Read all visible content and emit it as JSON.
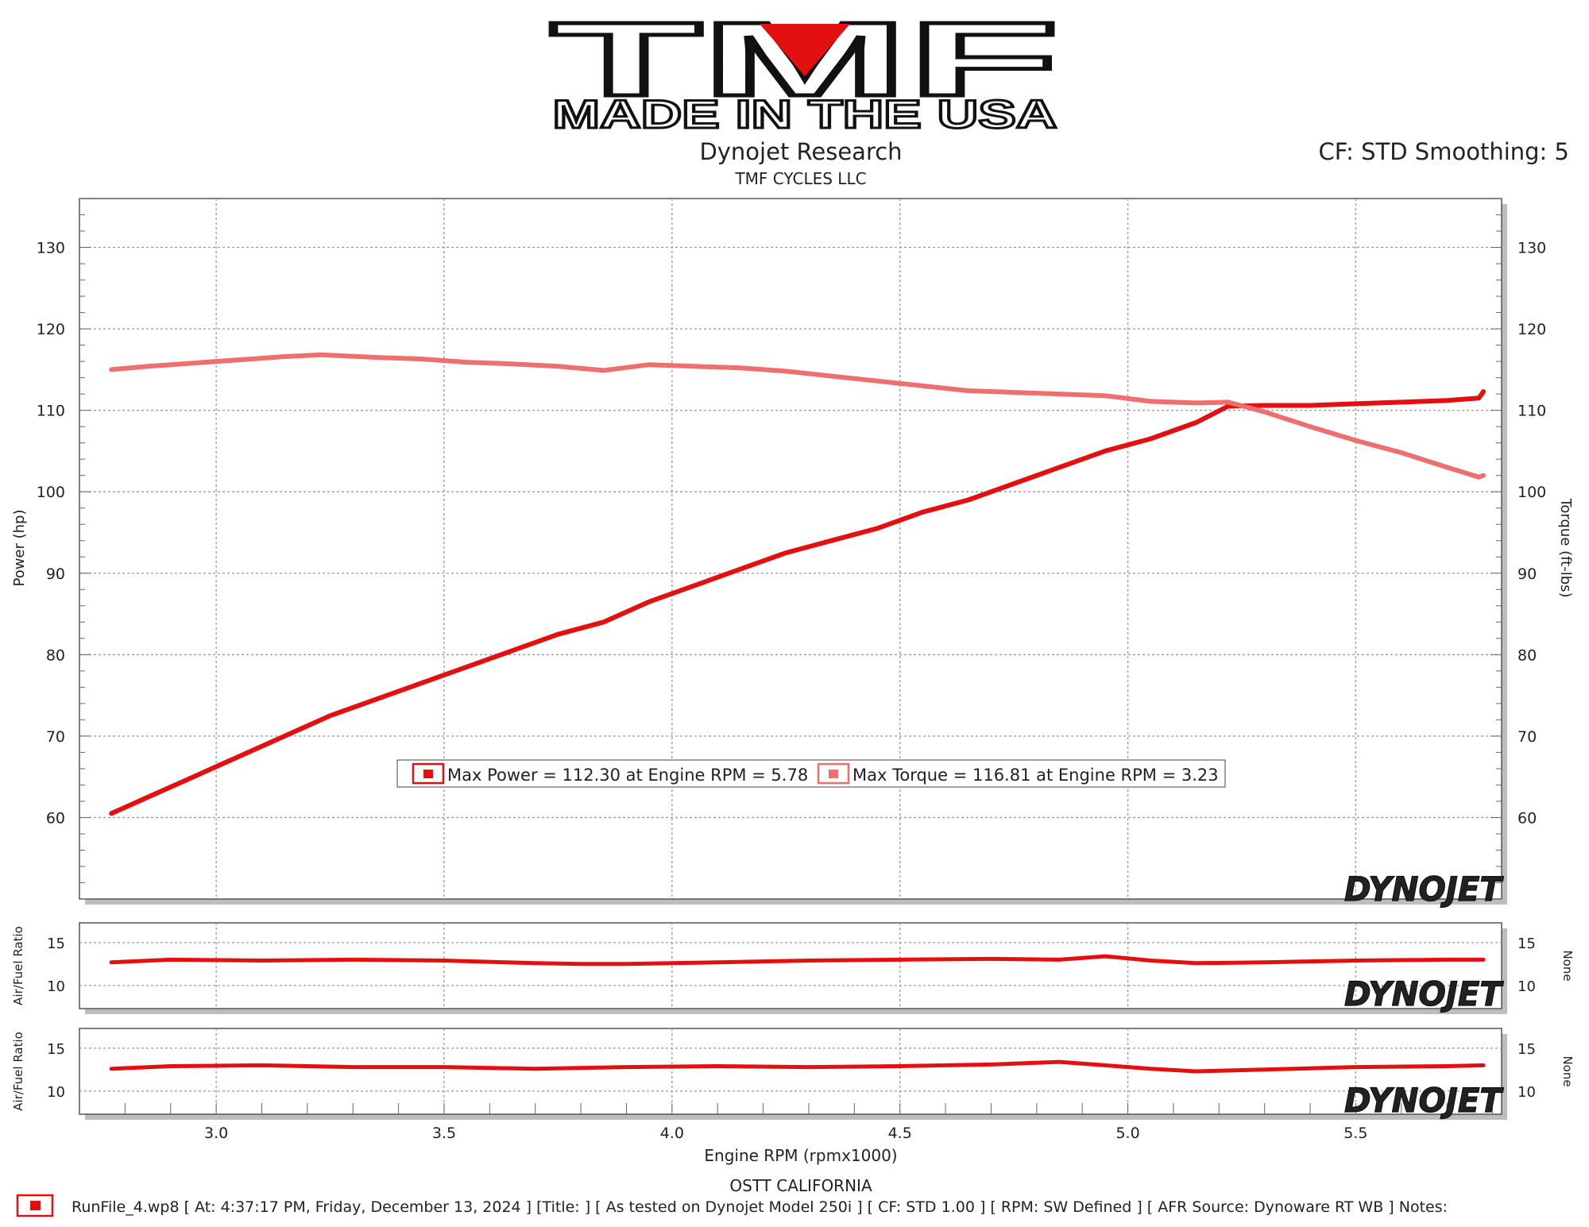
{
  "logo": {
    "wordmark": "TMF",
    "tagline": "MADE IN THE USA",
    "accent_color": "#e3100f"
  },
  "header": {
    "title": "Dynojet Research",
    "subtitle": "TMF CYCLES LLC",
    "settings": "CF: STD Smoothing: 5"
  },
  "watermark": "DYNOJET",
  "colors": {
    "power": "#e3100f",
    "torque": "#ef6f6f",
    "grid": "#9a9a9a"
  },
  "legend": {
    "power": "Max Power = 112.30 at Engine RPM = 5.78",
    "torque": "Max Torque = 116.81 at Engine RPM = 3.23"
  },
  "footer": {
    "location": "OSTT CALIFORNIA",
    "run_info": "RunFile_4.wp8 [ At: 4:37:17 PM, Friday, December 13, 2024 ] [Title: ]  [ As tested on Dynojet Model 250i ] [ CF: STD 1.00 ] [ RPM: SW Defined ] [ AFR Source: Dynoware RT WB ] Notes:"
  },
  "chart_data": [
    {
      "type": "line",
      "xlabel": "Engine RPM (rpmx1000)",
      "ylabel": "Power (hp)",
      "y2label": "Torque (ft-lbs)",
      "xlim": [
        2.7,
        5.82
      ],
      "ylim": [
        50,
        136
      ],
      "xticks": [
        "3.0",
        "3.5",
        "4.0",
        "4.5",
        "5.0",
        "5.5"
      ],
      "yticks": [
        "60",
        "70",
        "80",
        "90",
        "100",
        "110",
        "120",
        "130"
      ],
      "grid": true,
      "legend_position": "bottom-center",
      "series": [
        {
          "name": "Power",
          "axis": "left",
          "x": [
            2.77,
            2.85,
            2.95,
            3.05,
            3.15,
            3.25,
            3.35,
            3.45,
            3.55,
            3.65,
            3.75,
            3.85,
            3.95,
            4.05,
            4.15,
            4.25,
            4.35,
            4.45,
            4.55,
            4.65,
            4.75,
            4.85,
            4.95,
            5.05,
            5.15,
            5.22,
            5.3,
            5.4,
            5.5,
            5.6,
            5.7,
            5.77,
            5.78
          ],
          "values": [
            60.5,
            62.5,
            65.0,
            67.5,
            70.0,
            72.5,
            74.5,
            76.5,
            78.5,
            80.5,
            82.5,
            84.0,
            86.5,
            88.5,
            90.5,
            92.5,
            94.0,
            95.5,
            97.5,
            99.0,
            101.0,
            103.0,
            105.0,
            106.5,
            108.5,
            110.5,
            110.6,
            110.6,
            110.8,
            111.0,
            111.2,
            111.5,
            112.3
          ]
        },
        {
          "name": "Torque",
          "axis": "right",
          "x": [
            2.77,
            2.85,
            2.95,
            3.05,
            3.15,
            3.23,
            3.35,
            3.45,
            3.55,
            3.65,
            3.75,
            3.85,
            3.95,
            4.05,
            4.15,
            4.25,
            4.35,
            4.45,
            4.55,
            4.65,
            4.75,
            4.85,
            4.95,
            5.05,
            5.15,
            5.22,
            5.3,
            5.4,
            5.5,
            5.6,
            5.7,
            5.77,
            5.78
          ],
          "values": [
            115.0,
            115.4,
            115.8,
            116.2,
            116.6,
            116.81,
            116.5,
            116.3,
            115.9,
            115.7,
            115.4,
            114.9,
            115.6,
            115.4,
            115.2,
            114.8,
            114.2,
            113.6,
            113.0,
            112.4,
            112.2,
            112.0,
            111.8,
            111.1,
            110.9,
            111.0,
            109.8,
            108.0,
            106.3,
            104.8,
            103.0,
            101.8,
            102.0
          ]
        }
      ]
    },
    {
      "type": "line",
      "ylabel": "Air/Fuel Ratio",
      "y2label": "None",
      "xlim": [
        2.7,
        5.82
      ],
      "ylim": [
        7.3,
        17.3
      ],
      "yticks": [
        "10",
        "15"
      ],
      "grid": true,
      "series": [
        {
          "axis": "left",
          "x": [
            2.77,
            2.9,
            3.1,
            3.3,
            3.5,
            3.7,
            3.8,
            3.9,
            4.1,
            4.3,
            4.5,
            4.7,
            4.85,
            4.95,
            5.05,
            5.15,
            5.3,
            5.5,
            5.7,
            5.78
          ],
          "values": [
            12.7,
            13.0,
            12.9,
            13.0,
            12.9,
            12.6,
            12.5,
            12.5,
            12.7,
            12.9,
            13.0,
            13.1,
            13.0,
            13.4,
            12.9,
            12.6,
            12.7,
            12.9,
            13.0,
            13.0
          ]
        }
      ]
    },
    {
      "type": "line",
      "ylabel": "Air/Fuel Ratio",
      "y2label": "None",
      "xlim": [
        2.7,
        5.82
      ],
      "ylim": [
        7.3,
        17.3
      ],
      "yticks": [
        "10",
        "15"
      ],
      "grid": true,
      "series": [
        {
          "axis": "left",
          "x": [
            2.77,
            2.9,
            3.1,
            3.3,
            3.5,
            3.7,
            3.9,
            4.1,
            4.3,
            4.5,
            4.7,
            4.85,
            4.95,
            5.05,
            5.15,
            5.3,
            5.5,
            5.7,
            5.78
          ],
          "values": [
            12.6,
            12.9,
            13.0,
            12.8,
            12.8,
            12.6,
            12.8,
            12.9,
            12.8,
            12.9,
            13.1,
            13.4,
            13.0,
            12.6,
            12.3,
            12.5,
            12.8,
            12.9,
            13.0
          ]
        }
      ]
    }
  ]
}
